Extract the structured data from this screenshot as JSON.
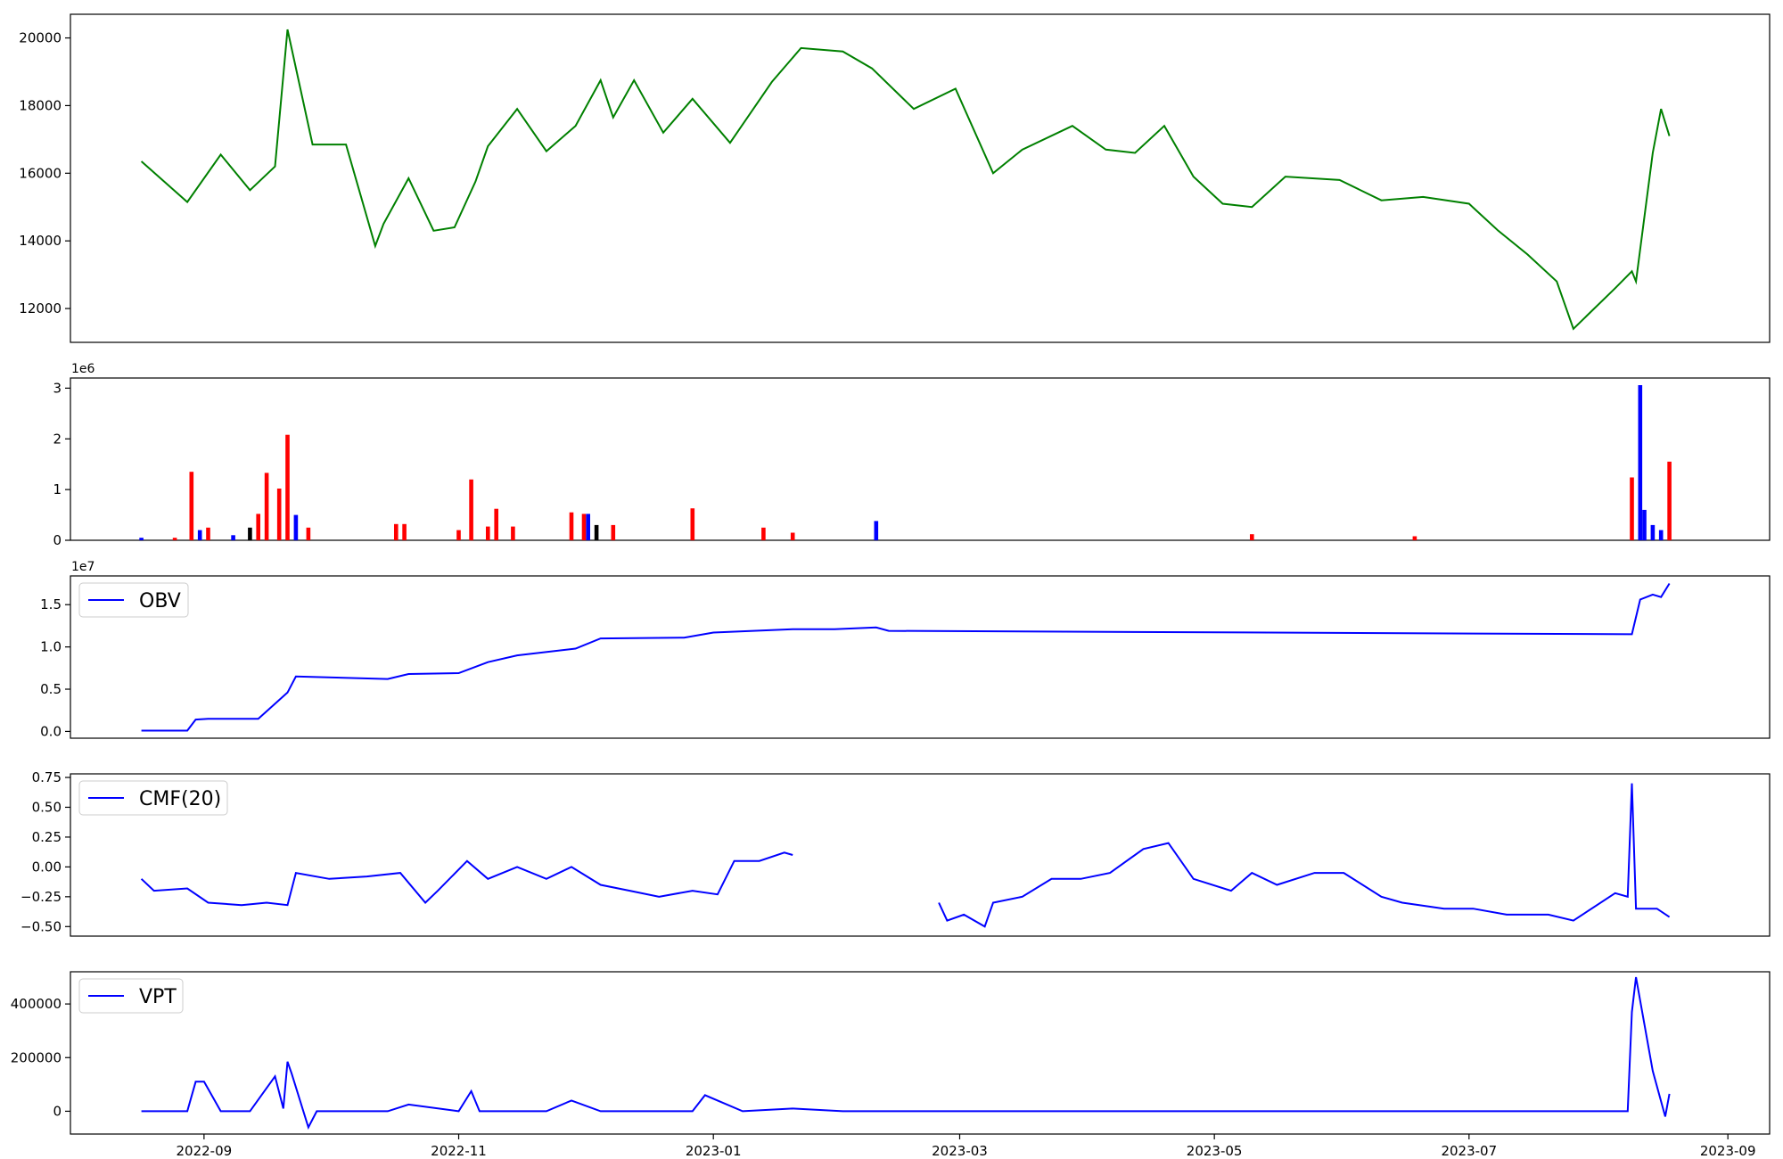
{
  "chart_data": [
    {
      "type": "line",
      "panel": "price",
      "color": "#008000",
      "ylim": [
        11000,
        20700
      ],
      "yticks": [
        "12000",
        "14000",
        "16000",
        "18000",
        "20000"
      ],
      "x": [
        "2022-08-17",
        "2022-08-28",
        "2022-09-05",
        "2022-09-12",
        "2022-09-18",
        "2022-09-21",
        "2022-09-27",
        "2022-10-05",
        "2022-10-12",
        "2022-10-14",
        "2022-10-20",
        "2022-10-26",
        "2022-10-31",
        "2022-11-05",
        "2022-11-08",
        "2022-11-15",
        "2022-11-22",
        "2022-11-29",
        "2022-12-05",
        "2022-12-08",
        "2022-12-13",
        "2022-12-20",
        "2022-12-27",
        "2023-01-05",
        "2023-01-15",
        "2023-01-22",
        "2023-02-01",
        "2023-02-08",
        "2023-02-18",
        "2023-02-28",
        "2023-03-09",
        "2023-03-16",
        "2023-03-28",
        "2023-04-05",
        "2023-04-12",
        "2023-04-19",
        "2023-04-26",
        "2023-05-03",
        "2023-05-10",
        "2023-05-18",
        "2023-05-31",
        "2023-06-10",
        "2023-06-20",
        "2023-07-01",
        "2023-07-08",
        "2023-07-15",
        "2023-07-22",
        "2023-07-26",
        "2023-08-05",
        "2023-08-09",
        "2023-08-10",
        "2023-08-14",
        "2023-08-16",
        "2023-08-18"
      ],
      "y": [
        16350,
        15150,
        16550,
        15500,
        16200,
        20250,
        16850,
        16850,
        13850,
        14500,
        15850,
        14300,
        14400,
        15750,
        16800,
        17900,
        16650,
        17400,
        18750,
        17650,
        18750,
        17200,
        18200,
        16900,
        18700,
        19700,
        19600,
        19100,
        17900,
        18500,
        16000,
        16700,
        17400,
        16700,
        16600,
        17400,
        15900,
        15100,
        15000,
        15900,
        15800,
        15200,
        15300,
        15100,
        14300,
        13600,
        12800,
        11400,
        12600,
        13100,
        12800,
        16600,
        17900,
        17100
      ]
    },
    {
      "type": "bar",
      "panel": "volume",
      "multiplier": "1e6",
      "ylim": [
        0,
        3200000
      ],
      "yticks": [
        "0",
        "1",
        "2",
        "3"
      ],
      "colors": {
        "up": "#ff0000",
        "down": "#0000ff",
        "flat": "#000000"
      },
      "x": [
        "2022-08-17",
        "2022-08-25",
        "2022-08-29",
        "2022-08-31",
        "2022-09-02",
        "2022-09-08",
        "2022-09-12",
        "2022-09-14",
        "2022-09-16",
        "2022-09-19",
        "2022-09-21",
        "2022-09-23",
        "2022-09-26",
        "2022-10-17",
        "2022-10-19",
        "2022-11-01",
        "2022-11-04",
        "2022-11-08",
        "2022-11-10",
        "2022-11-14",
        "2022-11-28",
        "2022-12-01",
        "2022-12-02",
        "2022-12-04",
        "2022-12-08",
        "2022-12-27",
        "2023-01-13",
        "2023-01-20",
        "2023-02-09",
        "2023-05-10",
        "2023-06-18",
        "2023-08-09",
        "2023-08-11",
        "2023-08-12",
        "2023-08-14",
        "2023-08-16",
        "2023-08-18"
      ],
      "values": [
        50000,
        50000,
        1350000,
        200000,
        250000,
        100000,
        250000,
        520000,
        1330000,
        1020000,
        2080000,
        500000,
        250000,
        320000,
        320000,
        200000,
        1200000,
        270000,
        620000,
        270000,
        550000,
        520000,
        520000,
        300000,
        300000,
        630000,
        250000,
        150000,
        380000,
        120000,
        80000,
        1240000,
        3060000,
        600000,
        300000,
        200000,
        1550000
      ],
      "kind": [
        "down",
        "up",
        "up",
        "down",
        "up",
        "down",
        "flat",
        "up",
        "up",
        "up",
        "up",
        "down",
        "up",
        "up",
        "up",
        "up",
        "up",
        "up",
        "up",
        "up",
        "up",
        "up",
        "down",
        "flat",
        "up",
        "up",
        "up",
        "up",
        "down",
        "up",
        "up",
        "up",
        "down",
        "down",
        "down",
        "down",
        "up"
      ]
    },
    {
      "type": "line",
      "panel": "obv",
      "color": "#0000ff",
      "multiplier": "1e7",
      "ylim": [
        -800000,
        18400000
      ],
      "yticks": [
        "0.0",
        "0.5",
        "1.0",
        "1.5"
      ],
      "legend": "OBV",
      "x": [
        "2022-08-17",
        "2022-08-28",
        "2022-08-30",
        "2022-09-02",
        "2022-09-14",
        "2022-09-21",
        "2022-09-23",
        "2022-10-15",
        "2022-10-20",
        "2022-11-01",
        "2022-11-08",
        "2022-11-15",
        "2022-11-29",
        "2022-12-05",
        "2022-12-25",
        "2023-01-01",
        "2023-01-20",
        "2023-01-30",
        "2023-02-09",
        "2023-02-12",
        "2023-08-09",
        "2023-08-11",
        "2023-08-14",
        "2023-08-16",
        "2023-08-18"
      ],
      "y": [
        100000,
        100000,
        1400000,
        1500000,
        1500000,
        4600000,
        6500000,
        6200000,
        6800000,
        6900000,
        8200000,
        9000000,
        9800000,
        11000000,
        11100000,
        11700000,
        12100000,
        12100000,
        12300000,
        11900000,
        11500000,
        15600000,
        16200000,
        15900000,
        17500000
      ]
    },
    {
      "type": "line",
      "panel": "cmf",
      "color": "#0000ff",
      "ylim": [
        -0.58,
        0.78
      ],
      "yticks": [
        "−0.50",
        "−0.25",
        "0.00",
        "0.25",
        "0.50",
        "0.75"
      ],
      "legend": "CMF(20)",
      "segments": [
        {
          "x": [
            "2022-08-17",
            "2022-08-20",
            "2022-08-28",
            "2022-09-02",
            "2022-09-10",
            "2022-09-16",
            "2022-09-21",
            "2022-09-23",
            "2022-10-01",
            "2022-10-10",
            "2022-10-18",
            "2022-10-24",
            "2022-10-27",
            "2022-11-03",
            "2022-11-08",
            "2022-11-15",
            "2022-11-22",
            "2022-11-28",
            "2022-12-05",
            "2022-12-12",
            "2022-12-19",
            "2022-12-27",
            "2023-01-02",
            "2023-01-06",
            "2023-01-12",
            "2023-01-18",
            "2023-01-20"
          ],
          "y": [
            -0.1,
            -0.2,
            -0.18,
            -0.3,
            -0.32,
            -0.3,
            -0.32,
            -0.05,
            -0.1,
            -0.08,
            -0.05,
            -0.3,
            -0.2,
            0.05,
            -0.1,
            0.0,
            -0.1,
            0.0,
            -0.15,
            -0.2,
            -0.25,
            -0.2,
            -0.23,
            0.05,
            0.05,
            0.12,
            0.1
          ]
        },
        {
          "x": [
            "2023-02-24",
            "2023-02-26",
            "2023-03-02",
            "2023-03-07",
            "2023-03-09",
            "2023-03-16",
            "2023-03-23",
            "2023-03-30",
            "2023-04-06",
            "2023-04-14",
            "2023-04-20",
            "2023-04-26",
            "2023-05-05",
            "2023-05-10",
            "2023-05-16",
            "2023-05-25",
            "2023-06-01",
            "2023-06-10",
            "2023-06-15",
            "2023-06-25",
            "2023-07-02",
            "2023-07-10",
            "2023-07-20",
            "2023-07-26",
            "2023-08-05",
            "2023-08-08",
            "2023-08-09",
            "2023-08-10",
            "2023-08-15",
            "2023-08-18"
          ],
          "y": [
            -0.3,
            -0.45,
            -0.4,
            -0.5,
            -0.3,
            -0.25,
            -0.1,
            -0.1,
            -0.05,
            0.15,
            0.2,
            -0.1,
            -0.2,
            -0.05,
            -0.15,
            -0.05,
            -0.05,
            -0.25,
            -0.3,
            -0.35,
            -0.35,
            -0.4,
            -0.4,
            -0.45,
            -0.22,
            -0.25,
            0.7,
            -0.35,
            -0.35,
            -0.42
          ]
        }
      ]
    },
    {
      "type": "line",
      "panel": "vpt",
      "color": "#0000ff",
      "ylim": [
        -85000,
        520000
      ],
      "yticks": [
        "0",
        "200000",
        "400000"
      ],
      "legend": "VPT",
      "x": [
        "2022-08-17",
        "2022-08-28",
        "2022-08-30",
        "2022-09-01",
        "2022-09-05",
        "2022-09-12",
        "2022-09-18",
        "2022-09-20",
        "2022-09-21",
        "2022-09-22",
        "2022-09-26",
        "2022-09-28",
        "2022-10-05",
        "2022-10-15",
        "2022-10-20",
        "2022-11-01",
        "2022-11-04",
        "2022-11-06",
        "2022-11-15",
        "2022-11-22",
        "2022-11-28",
        "2022-12-05",
        "2022-12-27",
        "2022-12-30",
        "2023-01-08",
        "2023-01-20",
        "2023-02-01",
        "2023-08-08",
        "2023-08-09",
        "2023-08-10",
        "2023-08-14",
        "2023-08-17",
        "2023-08-18"
      ],
      "y": [
        0,
        0,
        110000,
        110000,
        0,
        0,
        130000,
        10000,
        185000,
        140000,
        -60000,
        0,
        0,
        0,
        25000,
        0,
        75000,
        0,
        0,
        0,
        40000,
        0,
        0,
        60000,
        0,
        10000,
        0,
        0,
        370000,
        500000,
        150000,
        -20000,
        65000
      ]
    }
  ],
  "x_axis": {
    "ticks": [
      "2022-09",
      "2022-11",
      "2023-01",
      "2023-03",
      "2023-05",
      "2023-07",
      "2023-09"
    ],
    "range": [
      "2022-07-31",
      "2023-09-11"
    ]
  }
}
